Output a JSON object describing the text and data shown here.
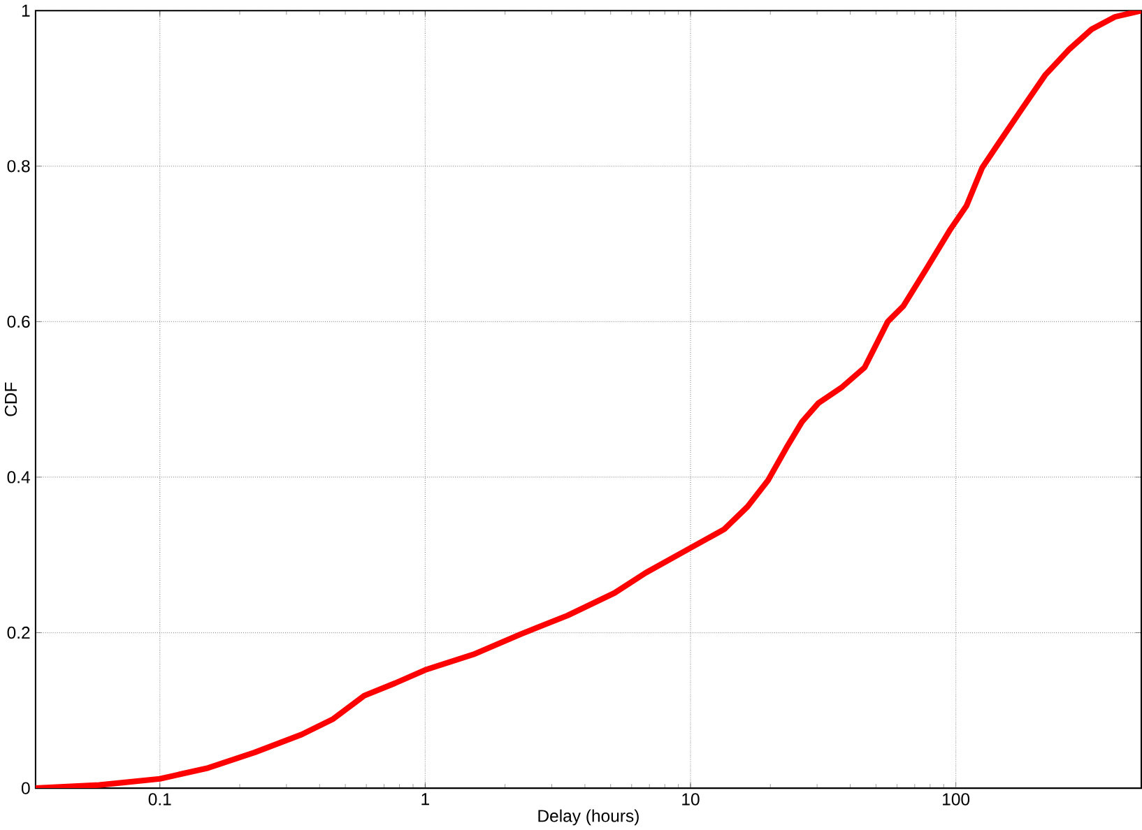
{
  "chart_data": {
    "type": "line",
    "xlabel": "Delay (hours)",
    "ylabel": "CDF",
    "log": "x",
    "grid": true,
    "xlim": [
      0.034,
      500
    ],
    "ylim": [
      0,
      1
    ],
    "xticks": [
      0.1,
      1,
      10,
      100
    ],
    "yticks": [
      0,
      0.2,
      0.4,
      0.6,
      0.8,
      1
    ],
    "series": [
      {
        "color": "#ff0000",
        "x": [
          0.034,
          0.059,
          0.1,
          0.152,
          0.228,
          0.342,
          0.45,
          0.589,
          0.77,
          1,
          1.52,
          2.29,
          3.44,
          5.17,
          6.78,
          10,
          13.4,
          16.4,
          19.6,
          23.0,
          26.3,
          30.3,
          37.0,
          45.3,
          55.4,
          63.4,
          77.8,
          95.5,
          109.7,
          125.7,
          144,
          177,
          217,
          267,
          325,
          398,
          500
        ],
        "values": [
          0,
          0.004,
          0.012,
          0.026,
          0.046,
          0.069,
          0.089,
          0.119,
          0.135,
          0.152,
          0.172,
          0.198,
          0.222,
          0.251,
          0.277,
          0.309,
          0.333,
          0.362,
          0.396,
          0.438,
          0.471,
          0.495,
          0.515,
          0.541,
          0.6,
          0.62,
          0.669,
          0.719,
          0.749,
          0.798,
          0.828,
          0.873,
          0.917,
          0.95,
          0.976,
          0.992,
          1.0
        ]
      }
    ]
  }
}
